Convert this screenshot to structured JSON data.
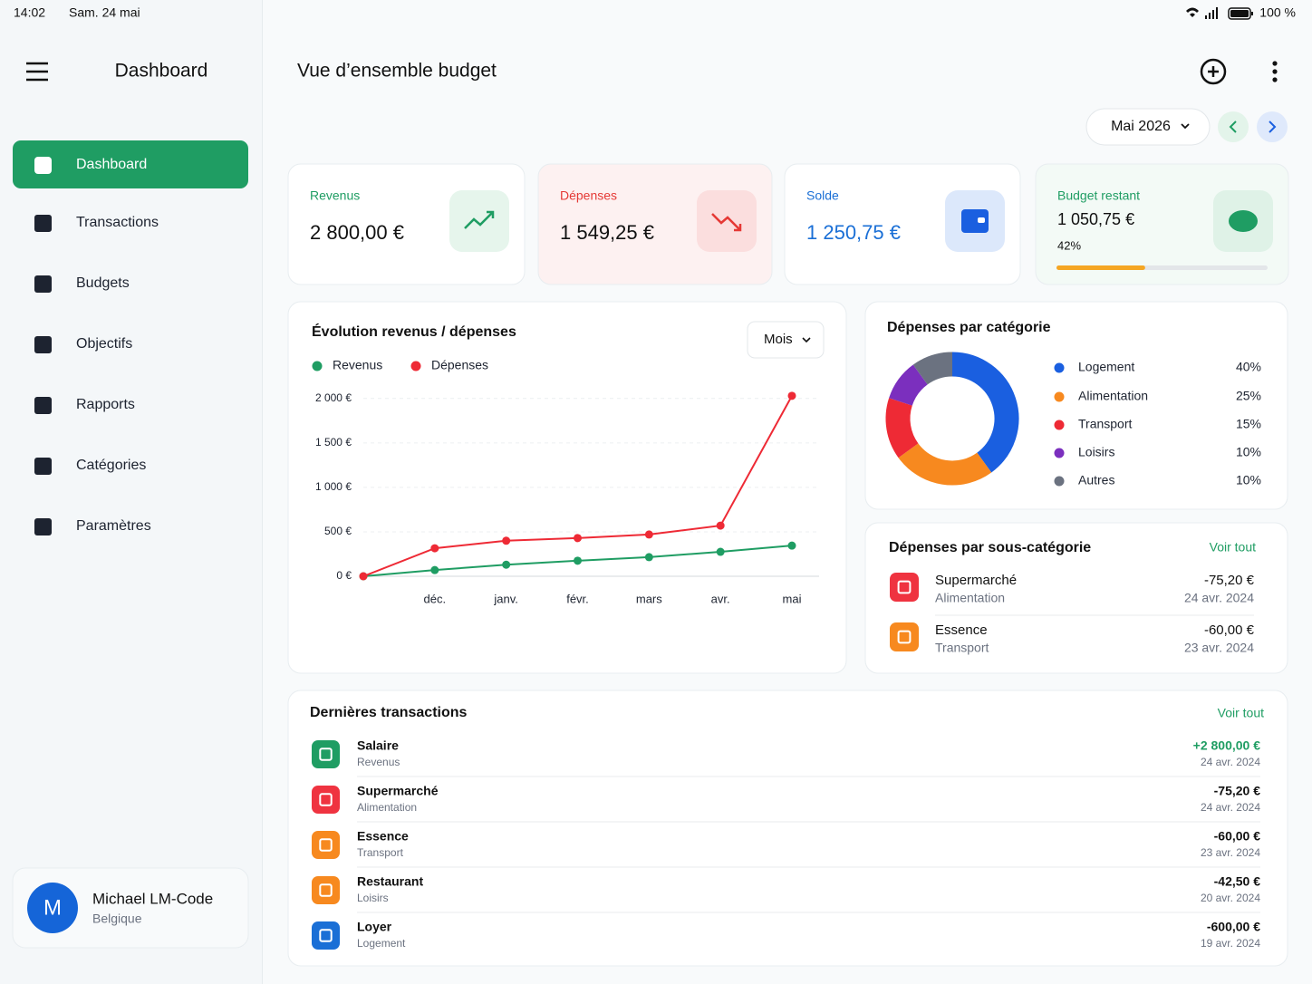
{
  "status_bar": {
    "time": "14:02",
    "date": "Sam. 24 mai",
    "battery": "100 %"
  },
  "sidebar": {
    "title": "Dashboard",
    "menu": [
      "Dashboard",
      "Transactions",
      "Budgets",
      "Objectifs",
      "Rapports",
      "Catégories",
      "Paramètres"
    ],
    "user": {
      "initial": "M",
      "name": "Michael LM-Code",
      "country": "Belgique"
    }
  },
  "header": {
    "title": "Vue d’ensemble budget",
    "month": "Mai 2026"
  },
  "kpis": [
    {
      "label": "Revenus",
      "value": "2 800,00 €"
    },
    {
      "label": "Dépenses",
      "value": "1 549,25 €"
    },
    {
      "label": "Solde",
      "value": "1 250,75 €"
    },
    {
      "label": "Budget restant",
      "value": "1 050,75 €",
      "progress": 42,
      "progress_label": "42%"
    }
  ],
  "chart_data": [
    {
      "type": "line",
      "title": "Évolution revenus / dépenses",
      "period": "Mois",
      "categories": [
        null,
        "déc.",
        "janv.",
        "févr.",
        "mars",
        "avr.",
        "mai"
      ],
      "series": [
        {
          "name": "Revenus",
          "color": "#1f9d63",
          "values": [
            0,
            70,
            130,
            175,
            215,
            275,
            345
          ]
        },
        {
          "name": "Dépenses",
          "color": "#ee2a35",
          "values": [
            0,
            315,
            400,
            430,
            470,
            570,
            2030
          ]
        }
      ],
      "ylim": [
        0,
        2100
      ],
      "yticks": [
        {
          "value": 0,
          "label": "0 €"
        },
        {
          "value": 500,
          "label": "500 €"
        },
        {
          "value": 1000,
          "label": "1 000 €"
        },
        {
          "value": 1500,
          "label": "1 500 €"
        },
        {
          "value": 2000,
          "label": "2 000 €"
        }
      ],
      "grid": true
    },
    {
      "type": "pie",
      "title": "Dépenses par catégorie",
      "categories": [
        "Logement",
        "Alimentation",
        "Transport",
        "Loisirs",
        "Autres"
      ],
      "values": [
        40,
        25,
        15,
        10,
        10
      ],
      "value_labels": [
        "40%",
        "25%",
        "15%",
        "10%",
        "10%"
      ],
      "colors": [
        "#1a5fe0",
        "#f7891f",
        "#ee2a35",
        "#7b2fbe",
        "#6b7280"
      ]
    }
  ],
  "subcategories": {
    "title": "Dépenses par sous-catégorie",
    "link": "Voir tout",
    "items": [
      {
        "name": "Supermarché",
        "category": "Alimentation",
        "amount": "-75,20 €",
        "date": "24 avr. 2024"
      },
      {
        "name": "Essence",
        "category": "Transport",
        "amount": "-60,00 €",
        "date": "23 avr. 2024"
      }
    ]
  },
  "transactions": {
    "title": "Dernières transactions",
    "link": "Voir tout",
    "items": [
      {
        "name": "Salaire",
        "category": "Revenus",
        "amount": "+2 800,00 €",
        "date": "24 avr. 2024"
      },
      {
        "name": "Supermarché",
        "category": "Alimentation",
        "amount": "-75,20 €",
        "date": "24 avr. 2024"
      },
      {
        "name": "Essence",
        "category": "Transport",
        "amount": "-60,00 €",
        "date": "23 avr. 2024"
      },
      {
        "name": "Restaurant",
        "category": "Loisirs",
        "amount": "-42,50 €",
        "date": "20 avr. 2024"
      },
      {
        "name": "Loyer",
        "category": "Logement",
        "amount": "-600,00 €",
        "date": "19 avr. 2024"
      }
    ]
  }
}
